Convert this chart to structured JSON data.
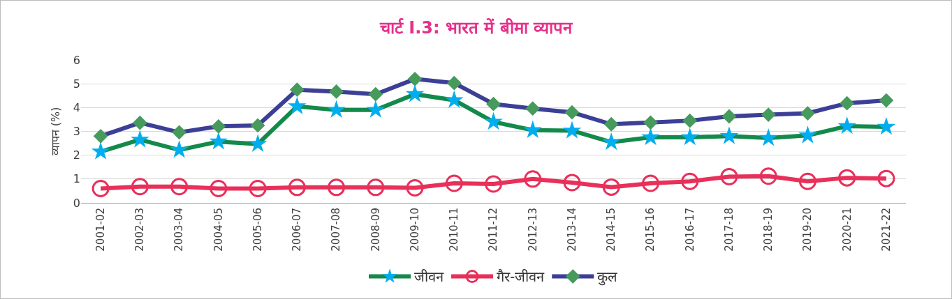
{
  "chart_data": {
    "type": "line",
    "title": "चार्ट I.3: भारत में बीमा व्यापन",
    "ylabel": "व्यापन (%)",
    "categories": [
      "2001-02",
      "2002-03",
      "2003-04",
      "2004-05",
      "2005-06",
      "2006-07",
      "2007-08",
      "2008-09",
      "2009-10",
      "2010-11",
      "2011-12",
      "2012-13",
      "2013-14",
      "2014-15",
      "2015-16",
      "2016-17",
      "2017-18",
      "2018-19",
      "2019-20",
      "2020-21",
      "2021-22"
    ],
    "series": [
      {
        "name": "जीवन",
        "color": "#138a4b",
        "marker": "star",
        "values": [
          2.15,
          2.65,
          2.22,
          2.57,
          2.47,
          4.05,
          3.9,
          3.9,
          4.56,
          4.31,
          3.4,
          3.05,
          3.03,
          2.55,
          2.75,
          2.75,
          2.8,
          2.72,
          2.83,
          3.22,
          3.19
        ]
      },
      {
        "name": "गैर-जीवन",
        "color": "#e8305a",
        "marker": "circle",
        "values": [
          0.6,
          0.68,
          0.68,
          0.6,
          0.6,
          0.65,
          0.65,
          0.65,
          0.63,
          0.82,
          0.79,
          1.0,
          0.85,
          0.66,
          0.82,
          0.9,
          1.1,
          1.12,
          0.9,
          1.05,
          1.02
        ]
      },
      {
        "name": "कुल",
        "color": "#3c3f96",
        "marker": "diamond",
        "values": [
          2.8,
          3.36,
          2.96,
          3.21,
          3.25,
          4.75,
          4.67,
          4.56,
          5.2,
          5.03,
          4.15,
          3.96,
          3.8,
          3.3,
          3.37,
          3.45,
          3.63,
          3.7,
          3.76,
          4.18,
          4.3
        ]
      }
    ],
    "ylim": [
      0,
      6
    ],
    "yticks": [
      0,
      1,
      2,
      3,
      4,
      5,
      6
    ],
    "grid": "y",
    "legend": "bottom"
  }
}
